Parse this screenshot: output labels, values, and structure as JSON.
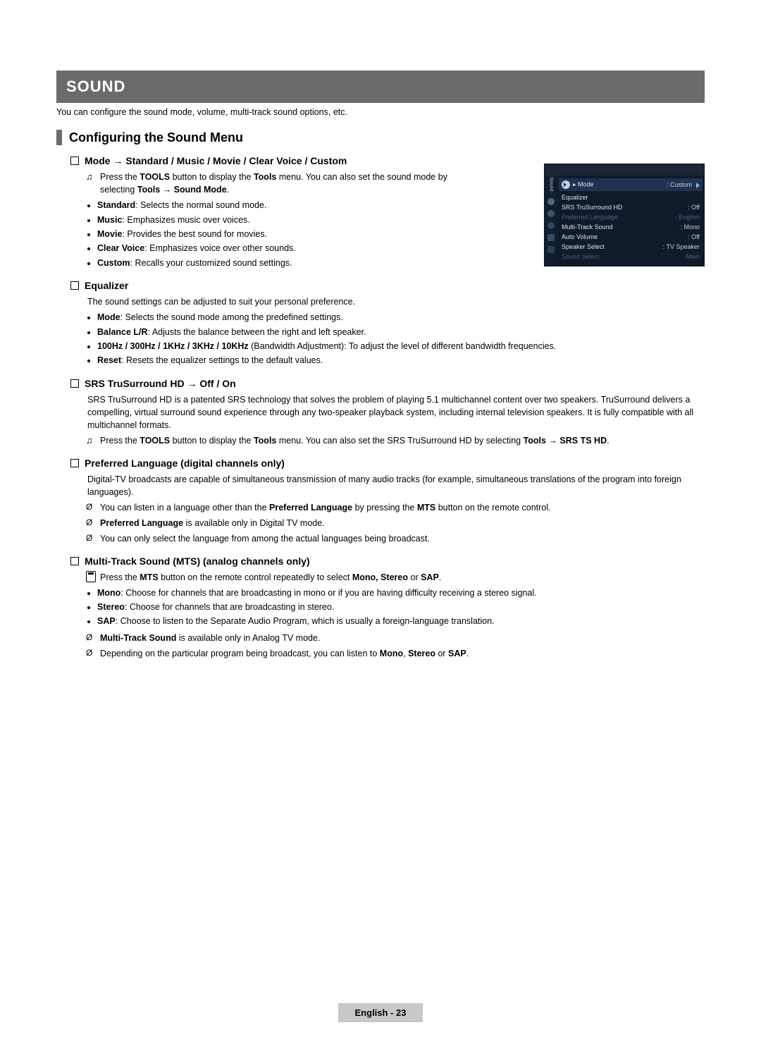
{
  "banner": "SOUND",
  "intro": "You can configure the sound mode, volume, multi-track sound options, etc.",
  "section_title": "Configuring the Sound Menu",
  "s1": {
    "head": "Mode → Standard / Music / Movie / Clear Voice / Custom",
    "tool_line_a": "Press the ",
    "tool_line_b": " button to display the ",
    "tool_line_c": " menu. You can also set the sound mode by selecting ",
    "tool_line_d": ".",
    "tools_word": "TOOLS",
    "tools_menu": "Tools",
    "path": "Tools → Sound Mode",
    "items": [
      {
        "k": "Standard",
        "v": ": Selects the normal sound mode."
      },
      {
        "k": "Music",
        "v": ": Emphasizes music over voices."
      },
      {
        "k": "Movie",
        "v": ": Provides the best sound for movies."
      },
      {
        "k": "Clear Voice",
        "v": ": Emphasizes voice over other sounds."
      },
      {
        "k": "Custom",
        "v": ": Recalls your customized sound settings."
      }
    ]
  },
  "s2": {
    "head": "Equalizer",
    "desc": "The sound settings can be adjusted to suit your personal preference.",
    "items": [
      {
        "k": "Mode",
        "v": ": Selects the sound mode among the predefined settings."
      },
      {
        "k": "Balance L/R",
        "v": ": Adjusts the balance between the right and left speaker."
      },
      {
        "k": "100Hz / 300Hz / 1KHz / 3KHz / 10KHz",
        "v": " (Bandwidth Adjustment): To adjust the level of different bandwidth frequencies."
      },
      {
        "k": "Reset",
        "v": ": Resets the equalizer settings to the default values."
      }
    ]
  },
  "s3": {
    "head": "SRS TruSurround HD → Off / On",
    "desc": "SRS TruSurround HD is a patented SRS technology that solves the problem of playing 5.1 multichannel content over two speakers. TruSurround delivers a compelling, virtual surround sound experience through any two-speaker playback system, including internal television speakers. It is fully compatible with all multichannel formats.",
    "tool_a": "Press the ",
    "tool_b": " button to display the ",
    "tool_c": " menu. You can also set the SRS TruSurround HD by selecting ",
    "tool_d": ".",
    "tools_word": "TOOLS",
    "tools_menu": "Tools",
    "path": "Tools → SRS TS HD"
  },
  "s4": {
    "head": "Preferred Language (digital channels only)",
    "desc": "Digital-TV broadcasts are capable of simultaneous transmission of many audio tracks (for example, simultaneous translations of the program into foreign languages).",
    "n1_a": "You can listen in a language other than the ",
    "n1_b": " by pressing the ",
    "n1_c": " button on the remote control.",
    "pref": "Preferred Language",
    "mts": "MTS",
    "n2_a": "Preferred Language",
    "n2_b": " is available only in Digital TV mode.",
    "n3": "You can only select the language from among the actual languages being broadcast."
  },
  "s5": {
    "head": "Multi-Track Sound (MTS) (analog channels only)",
    "r1_a": "Press the ",
    "r1_b": " button on the remote control repeatedly to select ",
    "r1_c": " or ",
    "r1_d": ".",
    "mts": "MTS",
    "ms": "Mono, Stereo",
    "sap": "SAP",
    "items": [
      {
        "k": "Mono",
        "v": ": Choose for channels that are broadcasting in mono or if you are having difficulty receiving a stereo signal."
      },
      {
        "k": "Stereo",
        "v": ": Choose for channels that are broadcasting in stereo."
      },
      {
        "k": "SAP",
        "v": ": Choose to listen to the Separate Audio Program, which is usually a foreign-language translation."
      }
    ],
    "n1_a": "Multi-Track Sound",
    "n1_b": " is available only in Analog TV mode.",
    "n2_a": "Depending on the particular program being broadcast, you can listen to ",
    "n2_b": ", ",
    "n2_c": " or ",
    "n2_d": ".",
    "mono": "Mono",
    "stereo": "Stereo"
  },
  "osd": {
    "side": "Sound",
    "hi_l": "Mode",
    "hi_r": ": Custom",
    "rows": [
      {
        "l": "Equalizer",
        "r": "",
        "dim": false
      },
      {
        "l": "SRS TruSurround HD",
        "r": ": Off",
        "dim": false
      },
      {
        "l": "Preferred Language",
        "r": ": English",
        "dim": true
      },
      {
        "l": "Multi-Track Sound",
        "r": ": Mono",
        "dim": false
      },
      {
        "l": "Auto Volume",
        "r": ": Off",
        "dim": false
      },
      {
        "l": "Speaker Select",
        "r": ": TV Speaker",
        "dim": false
      },
      {
        "l": "Sound Select",
        "r": ": Main",
        "dim": true
      }
    ]
  },
  "footer": "English - 23",
  "colors": {
    "banner_bg": "#6b6b6b",
    "banner_fg": "#ffffff",
    "osd_bg": "#0f1a2a",
    "osd_hi": "#1e3350",
    "osd_dim": "#4f6177",
    "footer_bg": "#c8c8c8"
  }
}
